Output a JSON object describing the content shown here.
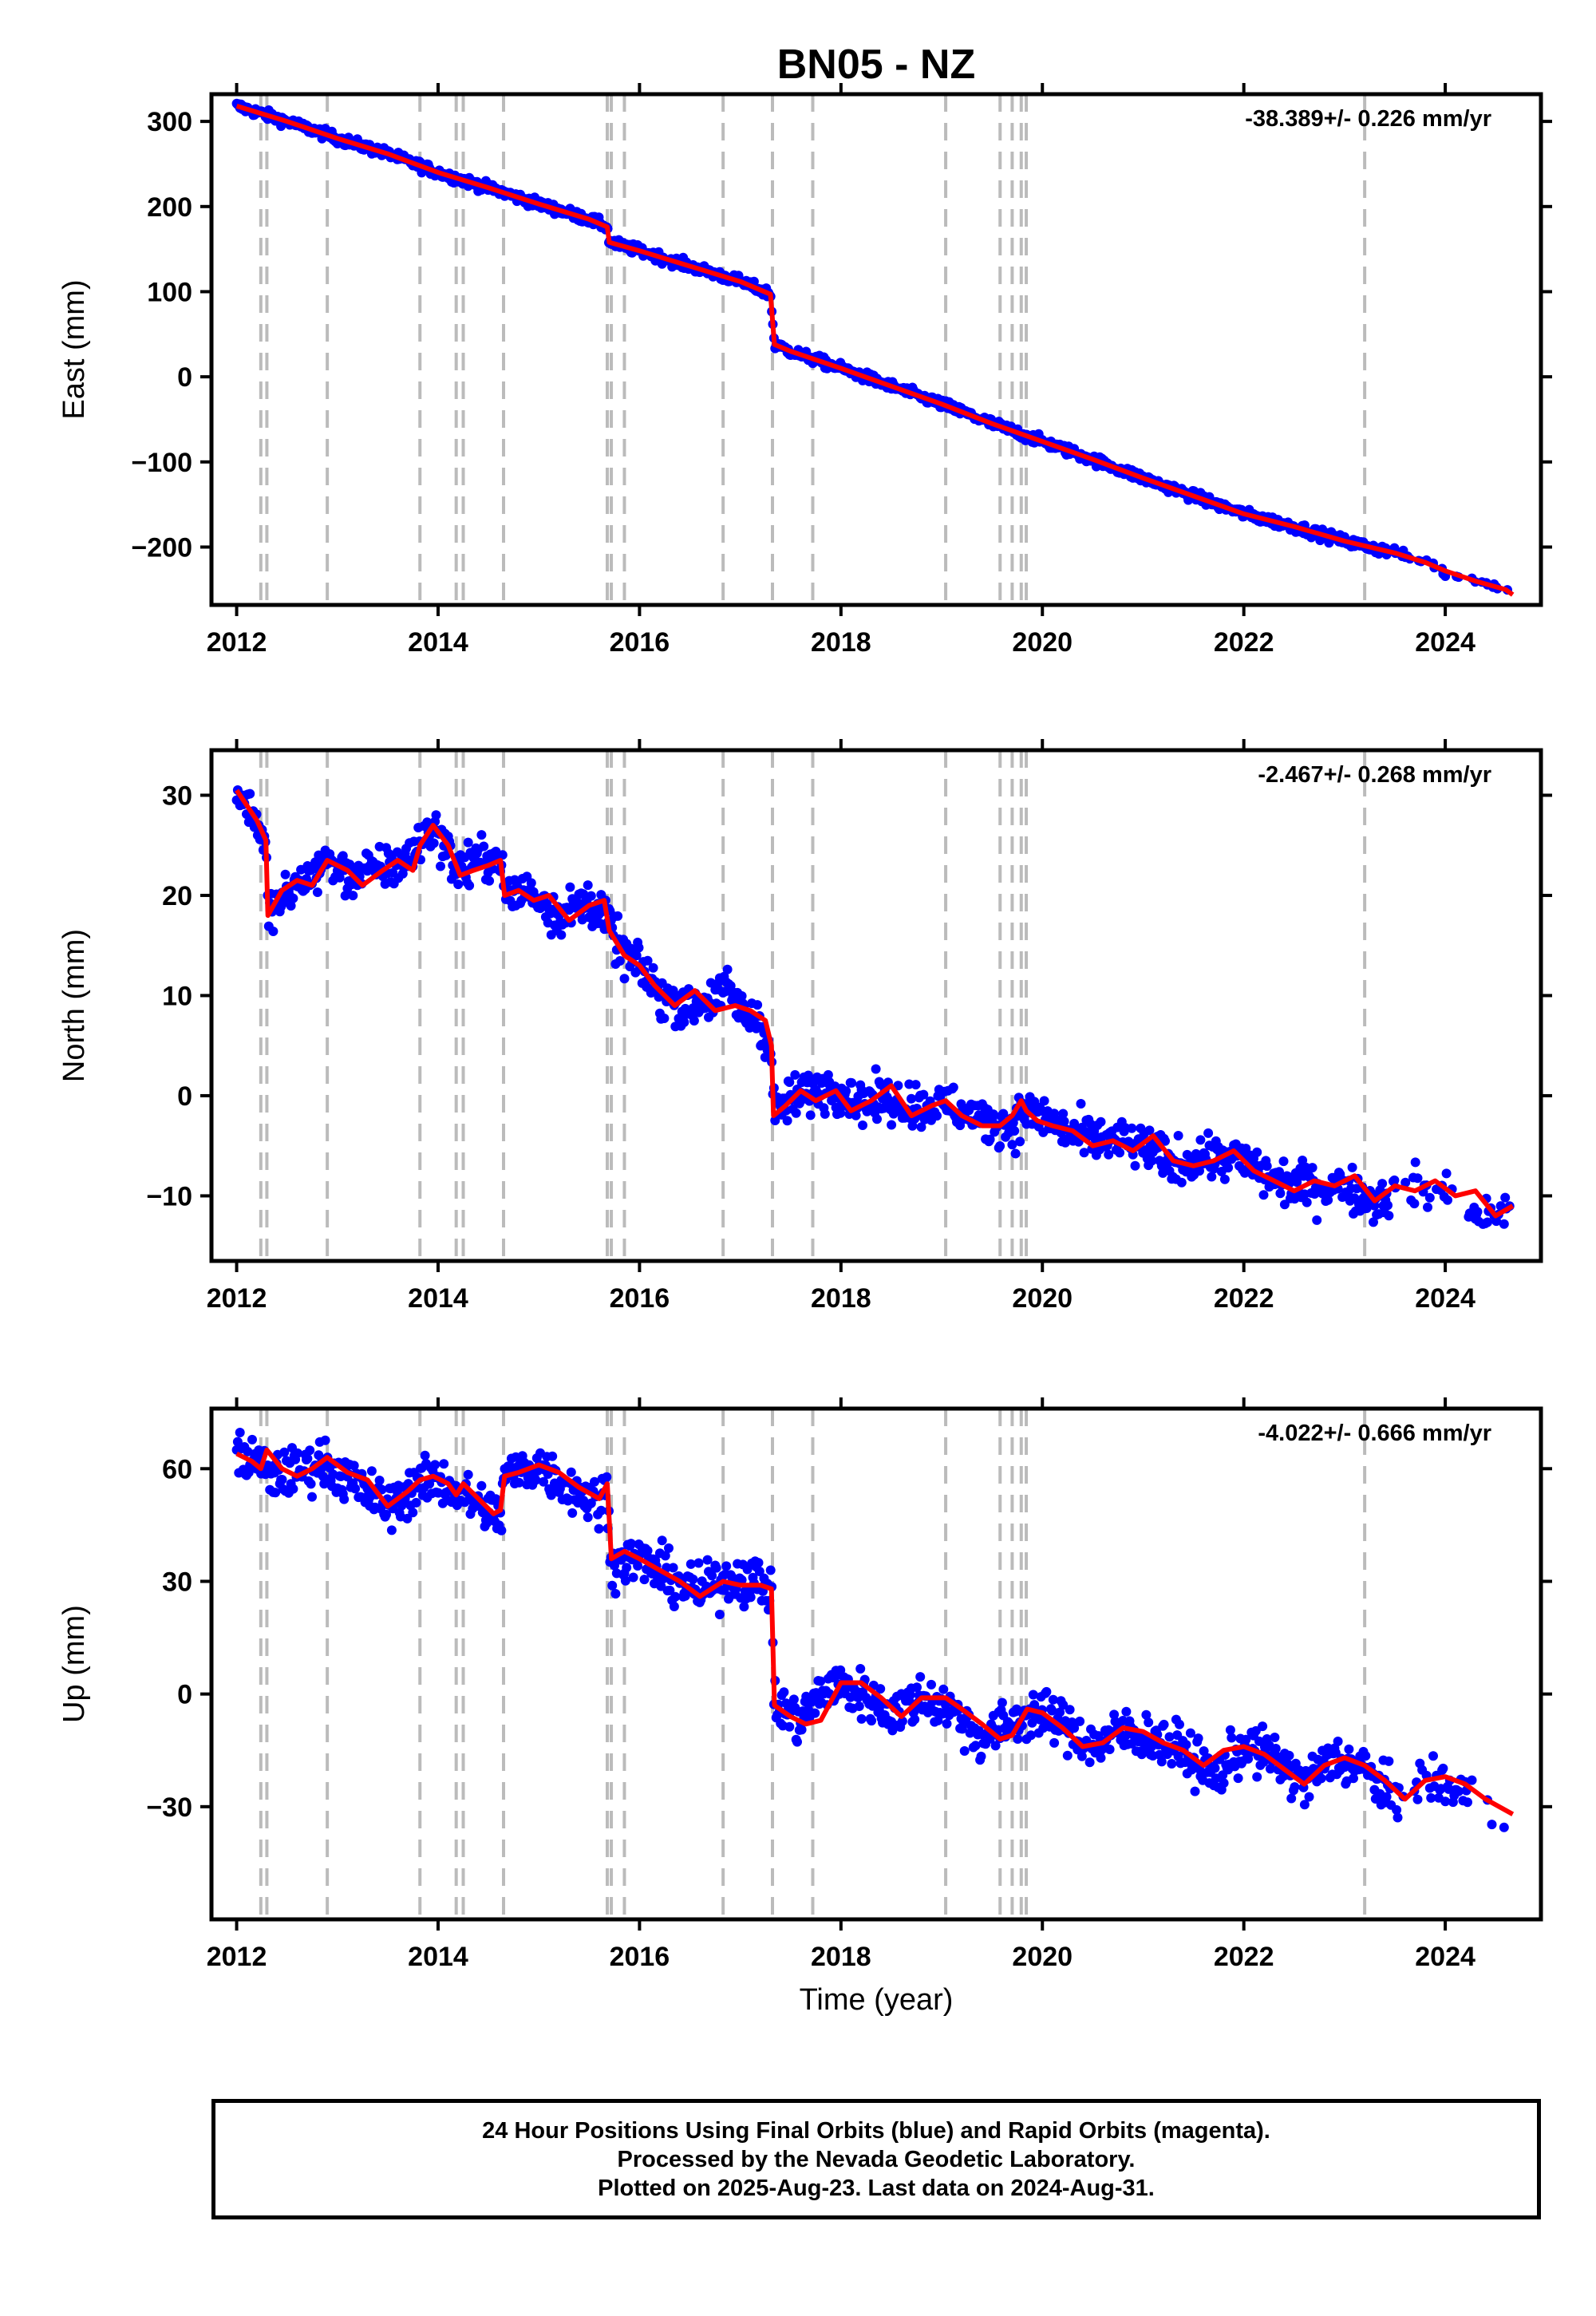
{
  "title": "BN05 - NZ",
  "xlabel": "Time (year)",
  "footer": {
    "line1": "24 Hour Positions Using Final Orbits (blue) and Rapid Orbits (magenta).",
    "line2": "Processed by the Nevada Geodetic Laboratory.",
    "line3": "Plotted on 2025-Aug-23. Last data on 2024-Aug-31."
  },
  "colors": {
    "data": "#0000ff",
    "model": "#ff0000",
    "events": "#bbbbbb"
  },
  "event_lines": [
    2012.24,
    2012.3,
    2012.9,
    2013.82,
    2014.18,
    2014.25,
    2014.65,
    2015.68,
    2015.72,
    2015.85,
    2016.83,
    2017.32,
    2017.72,
    2019.04,
    2019.58,
    2019.7,
    2019.79,
    2019.84,
    2023.2
  ],
  "chart_data": [
    {
      "type": "scatter",
      "title": "BN05 - NZ",
      "ylabel": "East (mm)",
      "xlabel": "",
      "rate_label": "-38.389+/- 0.226 mm/yr",
      "xlim": [
        2011.75,
        2024.95
      ],
      "ylim": [
        -268,
        332
      ],
      "xticks": [
        2012,
        2014,
        2016,
        2018,
        2020,
        2022,
        2024
      ],
      "yticks": [
        300,
        200,
        100,
        0,
        -100,
        -200
      ],
      "ytick_labels": [
        "300",
        "200",
        "100",
        "0",
        "−100",
        "−200"
      ],
      "series": [
        {
          "role": "data",
          "x": [
            2012.0,
            2012.5,
            2013.0,
            2013.5,
            2014.0,
            2014.5,
            2015.0,
            2015.5,
            2015.68,
            2015.7,
            2016.0,
            2016.5,
            2017.0,
            2017.3,
            2017.34,
            2017.5,
            2018.0,
            2018.5,
            2019.0,
            2019.5,
            2020.0,
            2020.5,
            2021.0,
            2021.5,
            2022.0,
            2022.5,
            2023.0,
            2023.5,
            2023.8,
            2024.0,
            2024.3,
            2024.6,
            2024.67
          ],
          "y": [
            318,
            300,
            280,
            262,
            240,
            222,
            203,
            185,
            176,
            158,
            148,
            130,
            112,
            97,
            38,
            30,
            10,
            -11,
            -32,
            -55,
            -76,
            -97,
            -119,
            -140,
            -161,
            -176,
            -193,
            -207,
            -218,
            -228,
            -240,
            -250,
            -256
          ]
        },
        {
          "role": "model",
          "x": [
            2012.0,
            2012.5,
            2013.0,
            2013.5,
            2014.0,
            2014.5,
            2015.0,
            2015.5,
            2015.68,
            2015.7,
            2016.0,
            2016.5,
            2017.0,
            2017.3,
            2017.34,
            2017.5,
            2018.0,
            2018.5,
            2019.0,
            2019.5,
            2020.0,
            2020.5,
            2021.0,
            2021.5,
            2022.0,
            2022.5,
            2023.0,
            2023.5,
            2023.8,
            2024.0,
            2024.3,
            2024.6,
            2024.67
          ],
          "y": [
            318,
            300,
            280,
            262,
            240,
            222,
            203,
            185,
            176,
            158,
            148,
            130,
            112,
            97,
            38,
            30,
            10,
            -11,
            -32,
            -55,
            -76,
            -97,
            -119,
            -140,
            -161,
            -176,
            -193,
            -207,
            -218,
            -228,
            -240,
            -250,
            -256
          ]
        }
      ]
    },
    {
      "type": "scatter",
      "title": "",
      "ylabel": "North (mm)",
      "xlabel": "",
      "rate_label": "-2.467+/- 0.268 mm/yr",
      "xlim": [
        2011.75,
        2024.95
      ],
      "ylim": [
        -16.5,
        34.5
      ],
      "xticks": [
        2012,
        2014,
        2016,
        2018,
        2020,
        2022,
        2024
      ],
      "yticks": [
        30,
        20,
        10,
        0,
        -10
      ],
      "ytick_labels": [
        "30",
        "20",
        "10",
        "0",
        "−10"
      ],
      "series": [
        {
          "role": "data",
          "x": [
            2012.0,
            2012.1,
            2012.2,
            2012.29,
            2012.31,
            2012.6,
            2012.9,
            2013.1,
            2013.4,
            2013.7,
            2013.95,
            2014.2,
            2014.4,
            2014.62,
            2014.66,
            2014.9,
            2015.2,
            2015.5,
            2015.7,
            2015.85,
            2016.0,
            2016.2,
            2016.5,
            2016.9,
            2017.0,
            2017.2,
            2017.31,
            2017.33,
            2017.6,
            2017.9,
            2018.2,
            2018.5,
            2018.8,
            2019.1,
            2019.4,
            2019.7,
            2019.85,
            2020.0,
            2020.3,
            2020.7,
            2021.1,
            2021.3,
            2021.6,
            2022.0,
            2022.3,
            2022.6,
            2023.0,
            2023.3,
            2023.6,
            2024.0,
            2024.35,
            2024.67
          ],
          "y": [
            30.5,
            29,
            27.5,
            25,
            18,
            21,
            23.5,
            22,
            22.5,
            23.5,
            27,
            22.5,
            23.5,
            24,
            20,
            20.5,
            18,
            19.5,
            17,
            14,
            13,
            10,
            9,
            10.5,
            8.5,
            7.5,
            4,
            -1.5,
            0,
            1,
            -0.5,
            -0.5,
            -1,
            -1,
            -2.5,
            -3,
            -1.5,
            -2,
            -4,
            -4.5,
            -5.5,
            -7,
            -6,
            -6.5,
            -8.5,
            -9,
            -9,
            -10.5,
            -9,
            -9.5,
            -12,
            -11
          ]
        },
        {
          "role": "model",
          "x": [
            2012.0,
            2012.1,
            2012.2,
            2012.29,
            2012.31,
            2012.45,
            2012.6,
            2012.75,
            2012.9,
            2013.1,
            2013.25,
            2013.45,
            2013.6,
            2013.75,
            2013.82,
            2013.95,
            2014.1,
            2014.18,
            2014.22,
            2014.35,
            2014.5,
            2014.62,
            2014.66,
            2014.8,
            2014.95,
            2015.1,
            2015.3,
            2015.5,
            2015.65,
            2015.7,
            2015.85,
            2016.0,
            2016.15,
            2016.35,
            2016.55,
            2016.75,
            2016.95,
            2017.1,
            2017.25,
            2017.31,
            2017.33,
            2017.45,
            2017.6,
            2017.75,
            2017.95,
            2018.1,
            2018.3,
            2018.5,
            2018.7,
            2018.9,
            2019.04,
            2019.2,
            2019.4,
            2019.58,
            2019.7,
            2019.79,
            2019.84,
            2019.95,
            2020.1,
            2020.3,
            2020.5,
            2020.7,
            2020.9,
            2021.1,
            2021.3,
            2021.5,
            2021.7,
            2021.9,
            2022.1,
            2022.3,
            2022.5,
            2022.7,
            2022.9,
            2023.1,
            2023.3,
            2023.5,
            2023.7,
            2023.9,
            2024.1,
            2024.3,
            2024.5,
            2024.67
          ],
          "y": [
            30.5,
            29,
            27.5,
            25.5,
            18,
            20.5,
            21.5,
            21,
            23.5,
            22.5,
            21,
            22.5,
            23.5,
            22.5,
            25,
            27,
            25,
            23,
            22,
            22.5,
            23,
            23.5,
            20,
            20.5,
            19.5,
            20,
            17.5,
            19,
            19.5,
            16.5,
            14,
            13,
            11,
            9,
            10.5,
            8.5,
            9,
            8.5,
            7.5,
            5,
            -2,
            -1,
            0.5,
            -0.5,
            0.5,
            -1.5,
            -0.5,
            1,
            -2,
            -1,
            -0.5,
            -2,
            -3,
            -3,
            -2,
            -0.5,
            -1.5,
            -2.5,
            -3,
            -3.5,
            -5,
            -4.5,
            -5.5,
            -4,
            -6.5,
            -7,
            -6.5,
            -5.5,
            -7.5,
            -8.5,
            -9.5,
            -8.5,
            -9,
            -8,
            -10.5,
            -9,
            -9.5,
            -8.5,
            -10,
            -9.5,
            -12,
            -11
          ]
        }
      ]
    },
    {
      "type": "scatter",
      "title": "",
      "ylabel": "Up (mm)",
      "xlabel": "Time (year)",
      "rate_label": "-4.022+/- 0.666 mm/yr",
      "xlim": [
        2011.75,
        2024.95
      ],
      "ylim": [
        -60,
        76
      ],
      "xticks": [
        2012,
        2014,
        2016,
        2018,
        2020,
        2022,
        2024
      ],
      "yticks": [
        60,
        30,
        0,
        -30
      ],
      "ytick_labels": [
        "60",
        "30",
        "0",
        "−30"
      ],
      "series": [
        {
          "role": "data",
          "x": [
            2012.0,
            2012.2,
            2012.3,
            2012.6,
            2012.85,
            2013.1,
            2013.5,
            2013.82,
            2014.0,
            2014.3,
            2014.62,
            2014.66,
            2015.0,
            2015.3,
            2015.6,
            2015.68,
            2015.72,
            2016.0,
            2016.3,
            2016.6,
            2016.9,
            2017.2,
            2017.31,
            2017.34,
            2017.6,
            2017.9,
            2018.2,
            2018.5,
            2018.8,
            2019.1,
            2019.4,
            2019.6,
            2019.9,
            2020.2,
            2020.5,
            2020.8,
            2021.1,
            2021.4,
            2021.7,
            2022.0,
            2022.3,
            2022.6,
            2022.9,
            2023.2,
            2023.5,
            2023.8,
            2024.0,
            2024.3,
            2024.67
          ],
          "y": [
            64,
            62,
            58,
            59,
            62,
            57,
            50,
            56,
            57,
            52,
            47,
            58,
            61,
            55,
            51,
            54,
            35,
            36,
            31,
            27,
            31,
            30,
            27,
            -3,
            -7,
            3,
            0,
            -5,
            -1,
            -4,
            -12,
            -9,
            -5,
            -8,
            -14,
            -10,
            -12,
            -15,
            -22,
            -14,
            -17,
            -24,
            -17,
            -20,
            -28,
            -22,
            -23,
            -28,
            -33
          ]
        },
        {
          "role": "model",
          "x": [
            2012.0,
            2012.15,
            2012.24,
            2012.3,
            2012.45,
            2012.6,
            2012.75,
            2012.9,
            2013.1,
            2013.3,
            2013.5,
            2013.7,
            2013.82,
            2013.95,
            2014.1,
            2014.18,
            2014.25,
            2014.4,
            2014.55,
            2014.62,
            2014.66,
            2014.8,
            2015.0,
            2015.2,
            2015.4,
            2015.6,
            2015.68,
            2015.72,
            2015.85,
            2016.0,
            2016.2,
            2016.4,
            2016.6,
            2016.83,
            2017.0,
            2017.2,
            2017.31,
            2017.34,
            2017.5,
            2017.65,
            2017.8,
            2018.0,
            2018.2,
            2018.4,
            2018.6,
            2018.8,
            2019.04,
            2019.2,
            2019.4,
            2019.58,
            2019.7,
            2019.85,
            2020.0,
            2020.2,
            2020.4,
            2020.6,
            2020.8,
            2021.0,
            2021.2,
            2021.4,
            2021.6,
            2021.8,
            2022.0,
            2022.2,
            2022.4,
            2022.6,
            2022.8,
            2023.0,
            2023.2,
            2023.4,
            2023.6,
            2023.8,
            2024.0,
            2024.2,
            2024.4,
            2024.67
          ],
          "y": [
            64,
            62,
            60,
            65,
            60,
            58,
            60,
            63,
            59,
            57,
            50,
            54,
            57,
            58,
            56,
            53,
            56,
            52,
            48,
            49,
            58,
            59,
            61,
            59,
            55,
            52,
            56,
            36,
            38,
            36,
            33,
            30,
            26,
            30,
            29,
            29,
            28,
            -3,
            -6,
            -8,
            -7,
            3,
            3,
            -1,
            -6,
            -1,
            -1,
            -4,
            -8,
            -12,
            -11,
            -4,
            -5,
            -9,
            -14,
            -13,
            -9,
            -10,
            -13,
            -15,
            -19,
            -15,
            -14,
            -16,
            -20,
            -24,
            -19,
            -17,
            -19,
            -23,
            -28,
            -23,
            -22,
            -24,
            -28,
            -32
          ]
        }
      ]
    }
  ]
}
